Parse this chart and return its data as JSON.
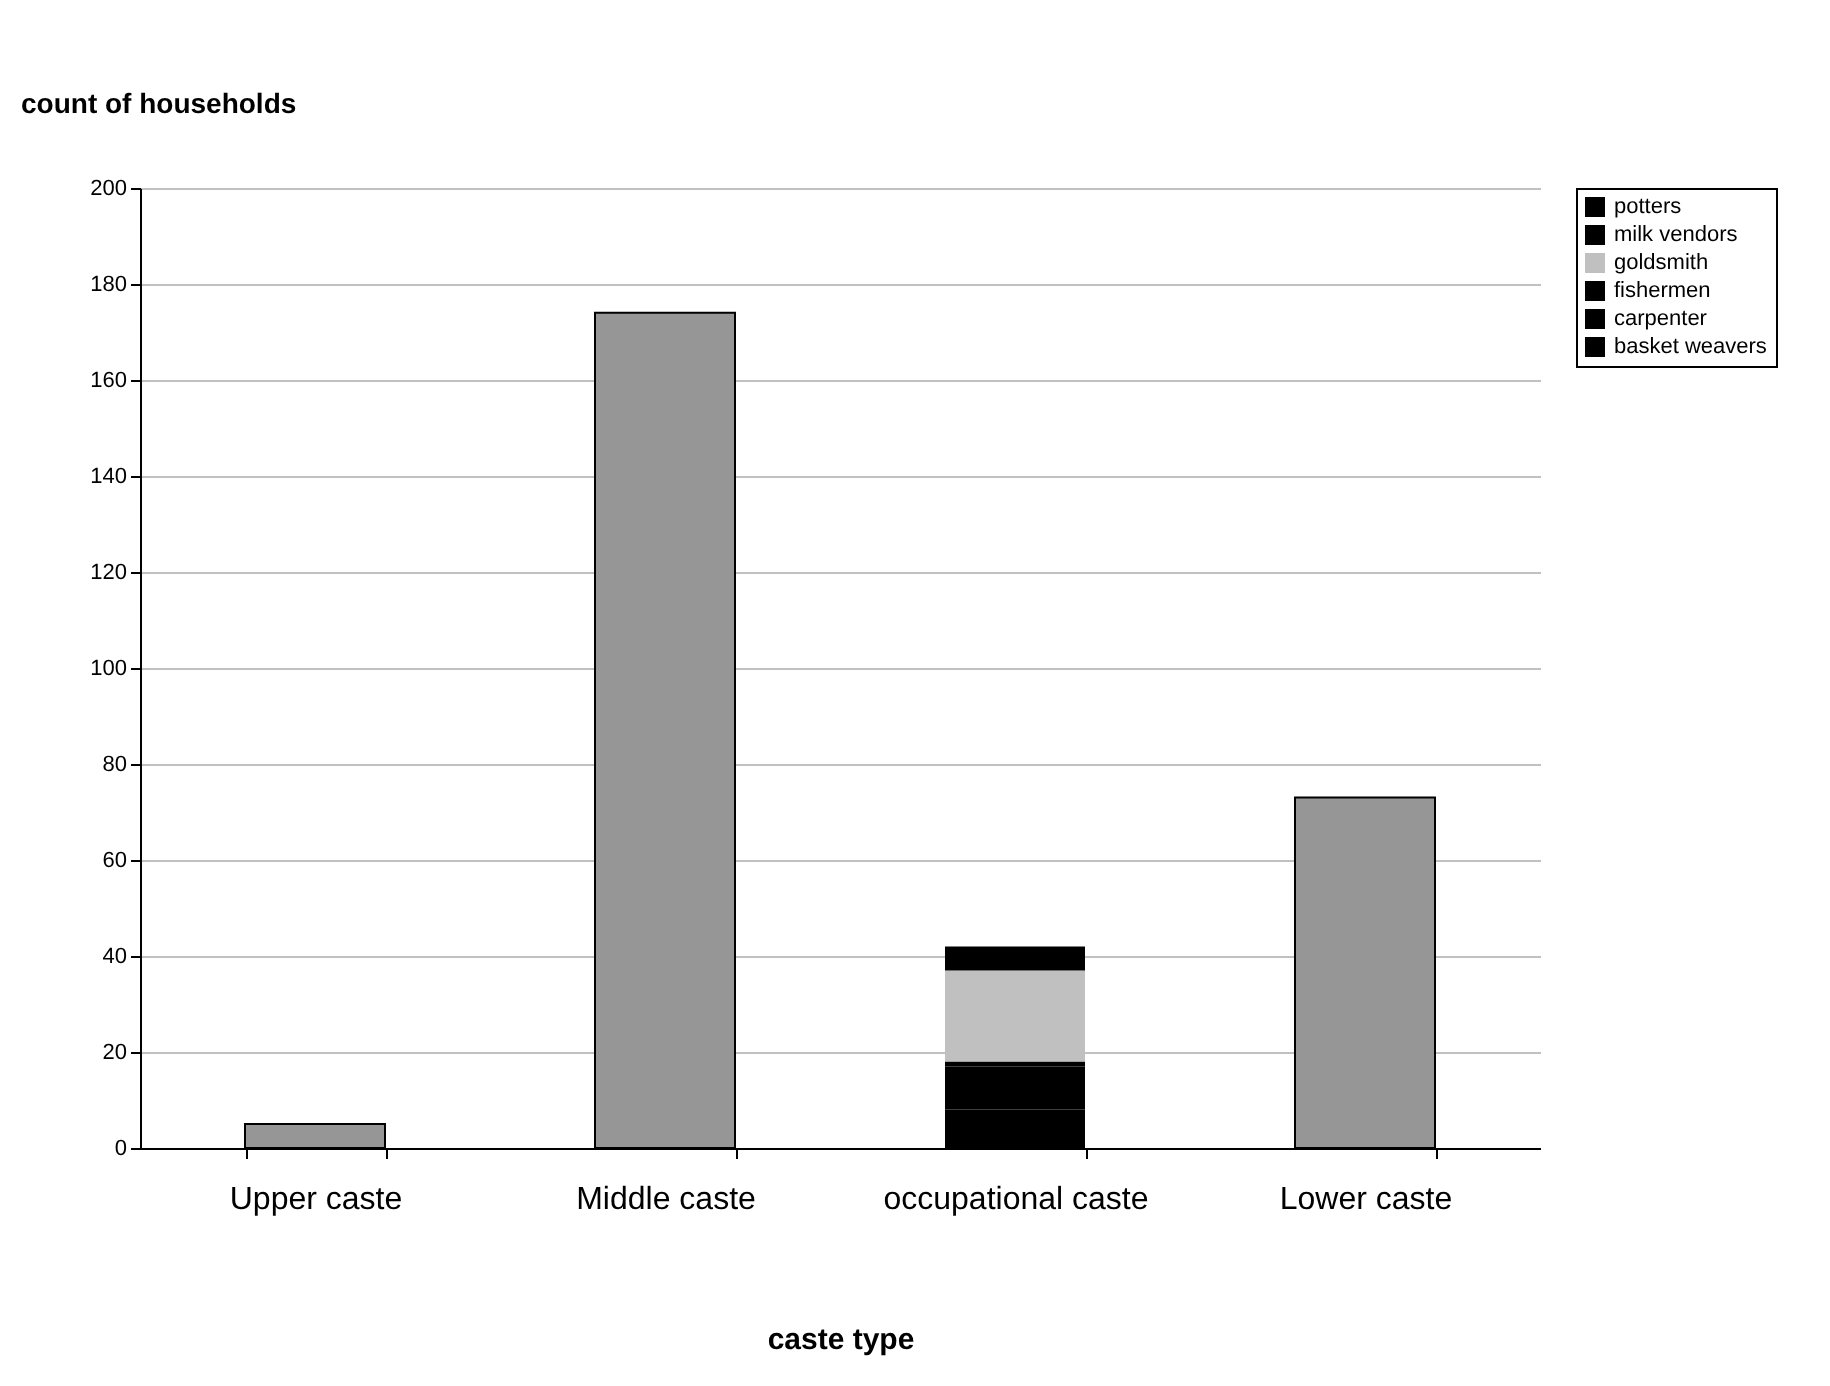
{
  "chart_data": {
    "type": "bar",
    "stacked": true,
    "ylabel": "count of households",
    "xlabel": "caste type",
    "categories": [
      "Upper caste",
      "Middle caste",
      "occupational caste",
      "Lower caste"
    ],
    "series": [
      {
        "color": "#969696",
        "values": [
          5,
          174,
          null,
          73
        ]
      },
      {
        "name": "basket weavers",
        "color": "#000000",
        "values": [
          null,
          null,
          8,
          null
        ]
      },
      {
        "name": "carpenter",
        "color": "#000000",
        "values": [
          null,
          null,
          9,
          null
        ]
      },
      {
        "name": "fishermen",
        "color": "#000000",
        "values": [
          null,
          null,
          1,
          null
        ]
      },
      {
        "name": "goldsmith",
        "color": "#c0c0c0",
        "values": [
          null,
          null,
          19,
          null
        ]
      },
      {
        "name": "milk vendors",
        "color": "#000000",
        "values": [
          null,
          null,
          5,
          null
        ]
      },
      {
        "name": "potters",
        "color": "#000000",
        "values": [
          null,
          null,
          0,
          null
        ]
      }
    ],
    "ylim": [
      0,
      200
    ],
    "yticks": [
      0,
      20,
      40,
      60,
      80,
      100,
      120,
      140,
      160,
      180,
      200
    ],
    "grid": "y",
    "legend": "right"
  }
}
